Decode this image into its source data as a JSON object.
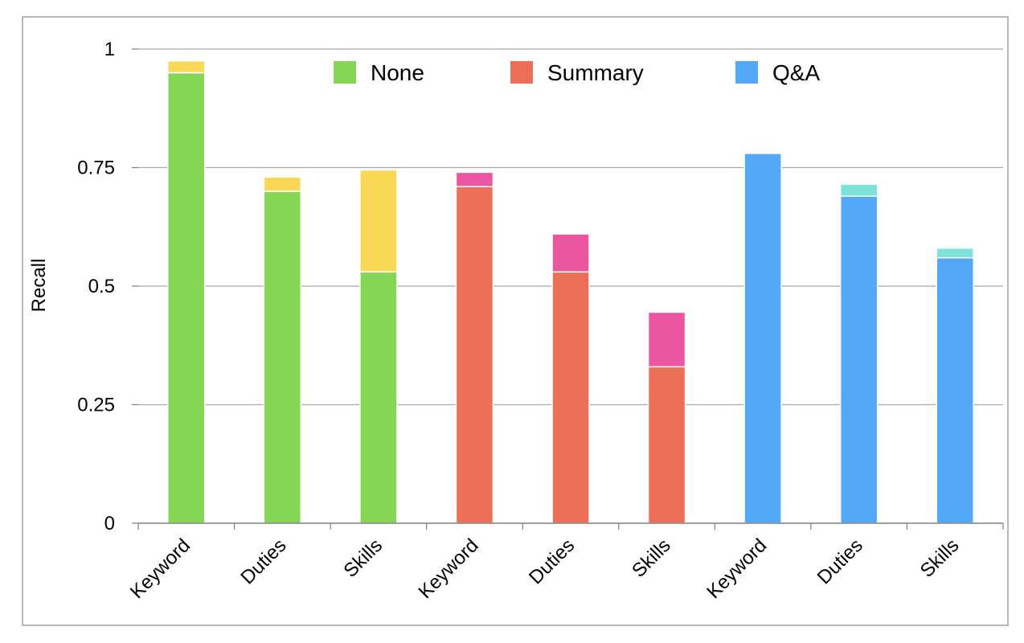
{
  "chart_data": {
    "type": "bar",
    "stacked": true,
    "title": "",
    "xlabel": "",
    "ylabel": "Recall",
    "ylim": [
      0,
      1
    ],
    "yticks": [
      {
        "value": 0,
        "label": "0"
      },
      {
        "value": 0.25,
        "label": "0.25"
      },
      {
        "value": 0.5,
        "label": "0.5"
      },
      {
        "value": 0.75,
        "label": "0.75"
      },
      {
        "value": 1,
        "label": "1"
      }
    ],
    "grid": true,
    "legend_position": "top-center",
    "categories": [
      "Keyword",
      "Duties",
      "Skills",
      "Keyword",
      "Duties",
      "Skills",
      "Keyword",
      "Duties",
      "Skills"
    ],
    "legend": [
      {
        "name": "None",
        "color": "#84d654"
      },
      {
        "name": "Summary",
        "color": "#ec6f57"
      },
      {
        "name": "Q&A",
        "color": "#53a9f7"
      }
    ],
    "bars": [
      {
        "group": "None",
        "category": "Keyword",
        "base": 0.95,
        "top": 0.975,
        "base_color": "#84d654",
        "top_color": "#f8d854"
      },
      {
        "group": "None",
        "category": "Duties",
        "base": 0.7,
        "top": 0.73,
        "base_color": "#84d654",
        "top_color": "#f8d854"
      },
      {
        "group": "None",
        "category": "Skills",
        "base": 0.53,
        "top": 0.745,
        "base_color": "#84d654",
        "top_color": "#f8d854"
      },
      {
        "group": "Summary",
        "category": "Keyword",
        "base": 0.71,
        "top": 0.74,
        "base_color": "#ec6f57",
        "top_color": "#ec55a0"
      },
      {
        "group": "Summary",
        "category": "Duties",
        "base": 0.53,
        "top": 0.61,
        "base_color": "#ec6f57",
        "top_color": "#ec55a0"
      },
      {
        "group": "Summary",
        "category": "Skills",
        "base": 0.33,
        "top": 0.445,
        "base_color": "#ec6f57",
        "top_color": "#ec55a0"
      },
      {
        "group": "Q&A",
        "category": "Keyword",
        "base": 0.78,
        "top": 0.782,
        "base_color": "#53a9f7",
        "top_color": "#7be3d8"
      },
      {
        "group": "Q&A",
        "category": "Duties",
        "base": 0.69,
        "top": 0.715,
        "base_color": "#53a9f7",
        "top_color": "#7be3d8"
      },
      {
        "group": "Q&A",
        "category": "Skills",
        "base": 0.56,
        "top": 0.58,
        "base_color": "#53a9f7",
        "top_color": "#7be3d8"
      }
    ]
  }
}
